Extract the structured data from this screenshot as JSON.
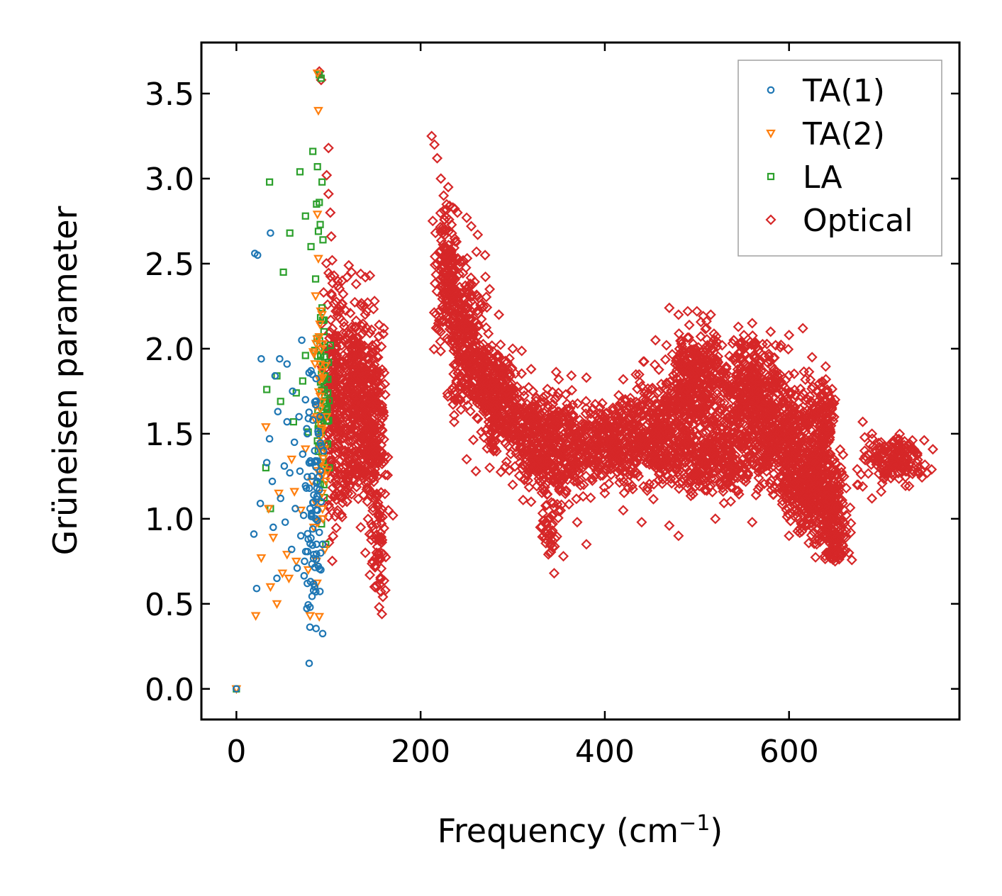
{
  "chart_data": {
    "type": "scatter",
    "title": "",
    "xlabel": "Frequency (cm",
    "xlabel_sup": "−1",
    "xlabel_close": ")",
    "ylabel": "Grüneisen parameter",
    "xlim": [
      -38,
      785
    ],
    "ylim": [
      -0.18,
      3.8
    ],
    "xticks": [
      0,
      200,
      400,
      600
    ],
    "xtick_labels": [
      "0",
      "200",
      "400",
      "600"
    ],
    "yticks": [
      0.0,
      0.5,
      1.0,
      1.5,
      2.0,
      2.5,
      3.0,
      3.5
    ],
    "ytick_labels": [
      "0.0",
      "0.5",
      "1.0",
      "1.5",
      "2.0",
      "2.5",
      "3.0",
      "3.5"
    ],
    "legend_position": "top-right",
    "series": [
      {
        "name": "TA(1)",
        "marker": "circle",
        "color": "#1f77b4",
        "points": [
          [
            0,
            0
          ],
          [
            19,
            0.91
          ],
          [
            22,
            0.59
          ],
          [
            20,
            2.56
          ],
          [
            23,
            2.55
          ],
          [
            26,
            1.09
          ],
          [
            27,
            1.94
          ],
          [
            33,
            1.33
          ],
          [
            36,
            1.47
          ],
          [
            37,
            2.68
          ],
          [
            39,
            1.22
          ],
          [
            40,
            0.95
          ],
          [
            42,
            1.84
          ],
          [
            44,
            0.65
          ],
          [
            45,
            1.63
          ],
          [
            48,
            1.12
          ],
          [
            47,
            1.94
          ],
          [
            52,
            1.31
          ],
          [
            55,
            1.91
          ],
          [
            53,
            0.98
          ],
          [
            55,
            1.57
          ],
          [
            58,
            1.27
          ],
          [
            60,
            0.82
          ],
          [
            61,
            1.75
          ],
          [
            63,
            1.45
          ],
          [
            64,
            1.06
          ],
          [
            66,
            0.71
          ],
          [
            68,
            1.6
          ],
          [
            69,
            1.28
          ],
          [
            70,
            0.9
          ],
          [
            71,
            2.05
          ],
          [
            72,
            1.38
          ],
          [
            73,
            1.02
          ],
          [
            74,
            0.75
          ],
          [
            75,
            1.7
          ],
          [
            76,
            1.18
          ],
          [
            77,
            0.62
          ],
          [
            77,
            1.5
          ],
          [
            78,
            0.88
          ],
          [
            79,
            1.33
          ],
          [
            80,
            0.48
          ],
          [
            80,
            1.06
          ],
          [
            81,
            1.87
          ],
          [
            82,
            1.25
          ],
          [
            83,
            0.94
          ],
          [
            83,
            1.58
          ],
          [
            84,
            1.14
          ],
          [
            84,
            0.79
          ],
          [
            85,
            1.4
          ],
          [
            85,
            0.6
          ],
          [
            86,
            1.0
          ],
          [
            86,
            1.67
          ],
          [
            87,
            1.21
          ],
          [
            87,
            0.85
          ],
          [
            88,
            1.34
          ],
          [
            88,
            1.05
          ],
          [
            89,
            0.72
          ],
          [
            89,
            1.5
          ],
          [
            90,
            1.17
          ],
          [
            90,
            0.92
          ],
          [
            91,
            1.28
          ],
          [
            91,
            1.6
          ],
          [
            92,
            1.1
          ],
          [
            92,
            1.43
          ]
        ],
        "clusters": [
          [
            84,
            1.0,
            7,
            0.55,
            60
          ]
        ]
      },
      {
        "name": "TA(2)",
        "marker": "triangle-down",
        "color": "#ff7f0e",
        "points": [
          [
            0,
            0
          ],
          [
            21,
            0.43
          ],
          [
            27,
            0.77
          ],
          [
            32,
            1.54
          ],
          [
            35,
            1.06
          ],
          [
            37,
            0.6
          ],
          [
            40,
            0.89
          ],
          [
            44,
            0.5
          ],
          [
            46,
            1.15
          ],
          [
            50,
            0.68
          ],
          [
            55,
            0.79
          ],
          [
            57,
            0.65
          ],
          [
            60,
            1.35
          ],
          [
            63,
            1.16
          ],
          [
            65,
            0.75
          ],
          [
            70,
            1.05
          ],
          [
            75,
            1.41
          ],
          [
            78,
            0.7
          ],
          [
            80,
            0.43
          ],
          [
            82,
            1.22
          ],
          [
            84,
            0.95
          ],
          [
            86,
            2.31
          ],
          [
            87,
            1.6
          ],
          [
            88,
            2.79
          ],
          [
            88,
            3.62
          ],
          [
            89,
            3.4
          ],
          [
            89,
            2.53
          ],
          [
            90,
            2.07
          ],
          [
            90,
            1.82
          ],
          [
            91,
            1.72
          ],
          [
            92,
            1.44
          ],
          [
            93,
            2.2
          ],
          [
            94,
            1.0
          ],
          [
            95,
            1.3
          ],
          [
            96,
            0.82
          ],
          [
            97,
            1.9
          ],
          [
            98,
            1.6
          ],
          [
            99,
            1.28
          ]
        ],
        "clusters": [
          [
            91,
            1.45,
            5,
            0.55,
            40
          ]
        ]
      },
      {
        "name": "LA",
        "marker": "square",
        "color": "#2ca02c",
        "points": [
          [
            0,
            0
          ],
          [
            32,
            1.3
          ],
          [
            33,
            1.76
          ],
          [
            36,
            2.98
          ],
          [
            37,
            1.06
          ],
          [
            44,
            1.84
          ],
          [
            48,
            1.69
          ],
          [
            51,
            2.45
          ],
          [
            58,
            2.68
          ],
          [
            62,
            1.57
          ],
          [
            65,
            1.74
          ],
          [
            69,
            3.04
          ],
          [
            72,
            1.81
          ],
          [
            75,
            2.78
          ],
          [
            75,
            1.96
          ],
          [
            78,
            1.51
          ],
          [
            81,
            2.6
          ],
          [
            83,
            3.16
          ],
          [
            85,
            1.99
          ],
          [
            86,
            2.41
          ],
          [
            87,
            2.85
          ],
          [
            88,
            3.07
          ],
          [
            89,
            2.69
          ],
          [
            90,
            2.86
          ],
          [
            90,
            3.61
          ],
          [
            91,
            2.73
          ],
          [
            92,
            3.59
          ],
          [
            93,
            2.24
          ],
          [
            93,
            2.98
          ],
          [
            94,
            2.64
          ],
          [
            95,
            2.1
          ],
          [
            95,
            1.2
          ],
          [
            96,
            1.84
          ],
          [
            97,
            0.85
          ],
          [
            98,
            1.66
          ],
          [
            99,
            1.44
          ],
          [
            100,
            1.92
          ],
          [
            101,
            1.3
          ],
          [
            102,
            2.02
          ]
        ],
        "clusters": [
          [
            94,
            1.7,
            6,
            0.45,
            55
          ]
        ]
      },
      {
        "name": "Optical",
        "marker": "diamond",
        "color": "#d62728",
        "points": [
          [
            90,
            3.63
          ],
          [
            92,
            3.58
          ],
          [
            100,
            3.18
          ],
          [
            98,
            3.02
          ],
          [
            100,
            2.91
          ],
          [
            102,
            2.8
          ],
          [
            103,
            2.66
          ],
          [
            104,
            2.52
          ],
          [
            106,
            2.43
          ],
          [
            110,
            2.37
          ],
          [
            115,
            2.4
          ],
          [
            120,
            2.42
          ],
          [
            125,
            2.45
          ],
          [
            122,
            2.49
          ],
          [
            130,
            2.38
          ],
          [
            135,
            2.44
          ],
          [
            140,
            2.42
          ],
          [
            145,
            2.43
          ],
          [
            150,
            2.28
          ],
          [
            155,
            2.14
          ],
          [
            160,
            2.12
          ],
          [
            165,
            1.05
          ],
          [
            170,
            1.02
          ],
          [
            158,
            0.44
          ],
          [
            155,
            0.48
          ],
          [
            150,
            0.6
          ],
          [
            148,
            0.75
          ],
          [
            140,
            0.8
          ],
          [
            135,
            0.95
          ],
          [
            120,
            1.1
          ],
          [
            110,
            1.05
          ],
          [
            212,
            3.25
          ],
          [
            215,
            3.2
          ],
          [
            218,
            3.12
          ],
          [
            222,
            3.0
          ],
          [
            225,
            2.9
          ],
          [
            230,
            2.95
          ],
          [
            235,
            2.83
          ],
          [
            240,
            2.8
          ],
          [
            250,
            2.77
          ],
          [
            255,
            2.72
          ],
          [
            262,
            2.67
          ],
          [
            270,
            2.55
          ],
          [
            275,
            2.35
          ],
          [
            285,
            2.2
          ],
          [
            300,
            2.0
          ],
          [
            320,
            1.88
          ],
          [
            350,
            1.82
          ],
          [
            380,
            1.83
          ],
          [
            420,
            1.82
          ],
          [
            455,
            2.05
          ],
          [
            470,
            2.24
          ],
          [
            480,
            2.2
          ],
          [
            490,
            2.22
          ],
          [
            500,
            2.22
          ],
          [
            515,
            2.2
          ],
          [
            540,
            2.05
          ],
          [
            560,
            2.15
          ],
          [
            580,
            2.1
          ],
          [
            600,
            2.08
          ],
          [
            615,
            2.12
          ],
          [
            625,
            1.95
          ],
          [
            640,
            1.82
          ],
          [
            650,
            1.7
          ],
          [
            660,
            1.05
          ],
          [
            665,
            0.8
          ],
          [
            650,
            0.75
          ],
          [
            630,
            0.85
          ],
          [
            600,
            0.9
          ],
          [
            560,
            0.98
          ],
          [
            520,
            1.0
          ],
          [
            480,
            0.9
          ],
          [
            470,
            0.96
          ],
          [
            440,
            0.98
          ],
          [
            420,
            1.05
          ],
          [
            400,
            1.15
          ],
          [
            380,
            0.85
          ],
          [
            370,
            0.98
          ],
          [
            355,
            0.78
          ],
          [
            345,
            0.68
          ],
          [
            340,
            0.8
          ],
          [
            330,
            0.95
          ],
          [
            320,
            1.1
          ],
          [
            300,
            1.2
          ],
          [
            275,
            1.3
          ],
          [
            260,
            1.28
          ],
          [
            250,
            1.35
          ],
          [
            680,
            1.57
          ],
          [
            690,
            1.5
          ],
          [
            700,
            1.45
          ],
          [
            715,
            1.3
          ],
          [
            730,
            1.32
          ],
          [
            740,
            1.3
          ],
          [
            750,
            1.27
          ],
          [
            700,
            1.16
          ],
          [
            690,
            1.12
          ],
          [
            680,
            1.19
          ],
          [
            675,
            1.2
          ]
        ],
        "clusters": [
          [
            105,
            1.7,
            8,
            0.5,
            160
          ],
          [
            130,
            1.75,
            18,
            0.35,
            380
          ],
          [
            148,
            1.5,
            10,
            0.35,
            200
          ],
          [
            155,
            0.8,
            6,
            0.25,
            50
          ],
          [
            120,
            1.25,
            14,
            0.12,
            60
          ],
          [
            230,
            2.4,
            10,
            0.28,
            200
          ],
          [
            250,
            2.05,
            14,
            0.3,
            260
          ],
          [
            280,
            1.75,
            18,
            0.18,
            260
          ],
          [
            320,
            1.55,
            35,
            0.18,
            330
          ],
          [
            340,
            1.3,
            25,
            0.14,
            160
          ],
          [
            340,
            0.95,
            8,
            0.12,
            40
          ],
          [
            400,
            1.45,
            40,
            0.18,
            400
          ],
          [
            460,
            1.5,
            30,
            0.22,
            360
          ],
          [
            500,
            1.8,
            25,
            0.22,
            360
          ],
          [
            520,
            1.35,
            35,
            0.15,
            300
          ],
          [
            560,
            1.75,
            28,
            0.22,
            360
          ],
          [
            590,
            1.5,
            30,
            0.22,
            360
          ],
          [
            620,
            1.2,
            25,
            0.18,
            300
          ],
          [
            640,
            1.1,
            18,
            0.2,
            200
          ],
          [
            650,
            0.85,
            10,
            0.1,
            70
          ],
          [
            635,
            1.55,
            12,
            0.22,
            150
          ],
          [
            715,
            1.35,
            25,
            0.1,
            160
          ]
        ]
      }
    ]
  }
}
